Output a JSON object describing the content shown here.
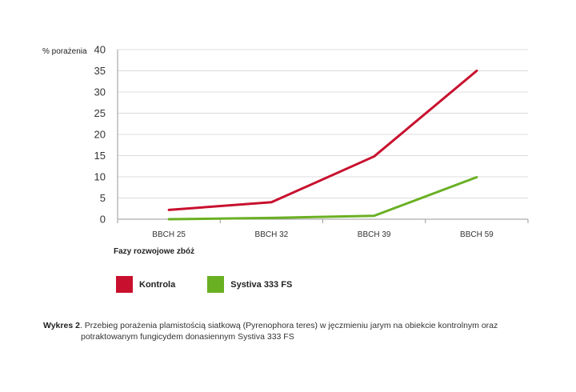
{
  "chart_data": {
    "type": "line",
    "ylabel": "% porażenia",
    "xlabel": "Fazy rozwojowe zbóż",
    "categories": [
      "BBCH 25",
      "BBCH 32",
      "BBCH 39",
      "BBCH 59"
    ],
    "ylim": [
      0,
      40
    ],
    "yticks": [
      0,
      5,
      10,
      15,
      20,
      25,
      30,
      35,
      40
    ],
    "grid": true,
    "legend_position": "bottom-left",
    "series": [
      {
        "name": "Kontrola",
        "color": "#c8102e",
        "values": [
          2.2,
          4.0,
          14.8,
          35.0
        ]
      },
      {
        "name": "Systiva 333 FS",
        "color": "#6ab023",
        "values": [
          0.0,
          0.3,
          0.8,
          9.9
        ]
      }
    ]
  },
  "caption": {
    "prefix": "Wykres 2",
    "line1": ". Przebieg porażenia plamistością siatkową (Pyrenophora teres) w jęczmieniu jarym na obiekcie kontrolnym oraz",
    "line2": "potraktowanym fungicydem donasiennym Systiva 333 FS"
  }
}
